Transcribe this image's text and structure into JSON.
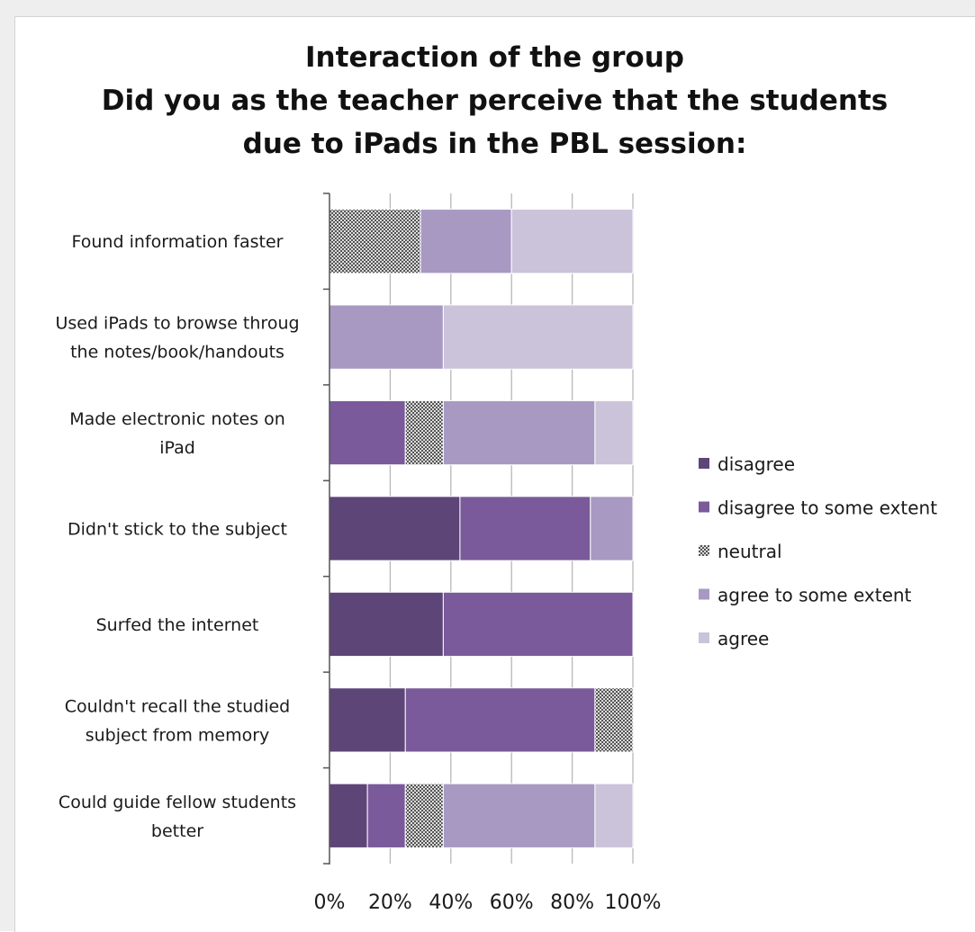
{
  "chart_data": {
    "type": "bar",
    "orientation": "horizontal",
    "stacked": "percent",
    "title_lines": [
      "Interaction of the group",
      "Did you as the teacher perceive that the students",
      "due to iPads in the PBL session:"
    ],
    "categories": [
      [
        "Found information faster"
      ],
      [
        "Used iPads to browse throug",
        "the notes/book/handouts"
      ],
      [
        "Made electronic notes on",
        "iPad"
      ],
      [
        "Didn't stick to the subject"
      ],
      [
        "Surfed the internet"
      ],
      [
        "Couldn't recall the studied",
        "subject from memory"
      ],
      [
        "Could guide fellow students",
        "better"
      ]
    ],
    "series": [
      {
        "name": "disagree",
        "color": "#5e4578",
        "values": [
          0,
          0,
          0,
          43,
          37.5,
          25,
          12.5
        ]
      },
      {
        "name": "disagree to some extent",
        "color": "#7a5a9a",
        "values": [
          0,
          0,
          25,
          43,
          62.5,
          62.5,
          12.5
        ]
      },
      {
        "name": "neutral",
        "color": "#888888",
        "pattern": "checker",
        "values": [
          30,
          0,
          12.5,
          0,
          0,
          12.5,
          12.5
        ]
      },
      {
        "name": "agree to some extent",
        "color": "#a899c3",
        "values": [
          30,
          37.5,
          50,
          14,
          0,
          0,
          50
        ]
      },
      {
        "name": "agree",
        "color": "#cbc3da",
        "values": [
          40,
          62.5,
          12.5,
          0,
          0,
          0,
          12.5
        ]
      }
    ],
    "x_ticks": [
      "0%",
      "20%",
      "40%",
      "60%",
      "80%",
      "100%"
    ],
    "xlim": [
      0,
      100
    ],
    "grid": true,
    "legend_position": "right"
  }
}
